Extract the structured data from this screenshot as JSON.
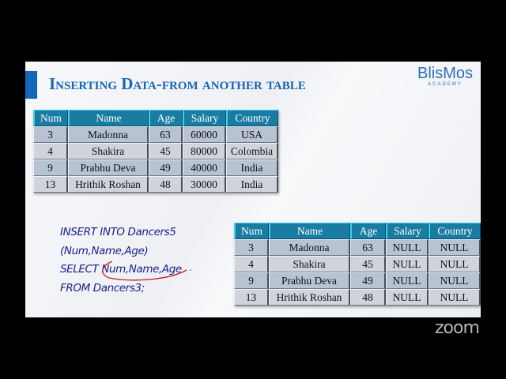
{
  "slide": {
    "title": "Inserting Data-from another table",
    "logo": {
      "name": "BlisMos",
      "subtitle": "ACADEMY"
    },
    "colors": {
      "accent": "#1565b8",
      "header": "#197ca3",
      "sql_text": "#1a1f8a",
      "annotation": "#c0202a"
    }
  },
  "source_table": {
    "headers": [
      "Num",
      "Name",
      "Age",
      "Salary",
      "Country"
    ],
    "rows": [
      [
        "3",
        "Madonna",
        "63",
        "60000",
        "USA"
      ],
      [
        "4",
        "Shakira",
        "45",
        "80000",
        "Colombia"
      ],
      [
        "9",
        "Prabhu Deva",
        "49",
        "40000",
        "India"
      ],
      [
        "13",
        "Hrithik Roshan",
        "48",
        "30000",
        "India"
      ]
    ]
  },
  "result_table": {
    "headers": [
      "Num",
      "Name",
      "Age",
      "Salary",
      "Country"
    ],
    "rows": [
      [
        "3",
        "Madonna",
        "63",
        "NULL",
        "NULL"
      ],
      [
        "4",
        "Shakira",
        "45",
        "NULL",
        "NULL"
      ],
      [
        "9",
        "Prabhu Deva",
        "49",
        "NULL",
        "NULL"
      ],
      [
        "13",
        "Hrithik Roshan",
        "48",
        "NULL",
        "NULL"
      ]
    ]
  },
  "sql": {
    "lines": [
      "INSERT INTO Dancers5",
      "(Num,Name,Age)",
      "SELECT Num,Name,Age",
      "FROM Dancers3;"
    ]
  },
  "watermark": "zoom"
}
